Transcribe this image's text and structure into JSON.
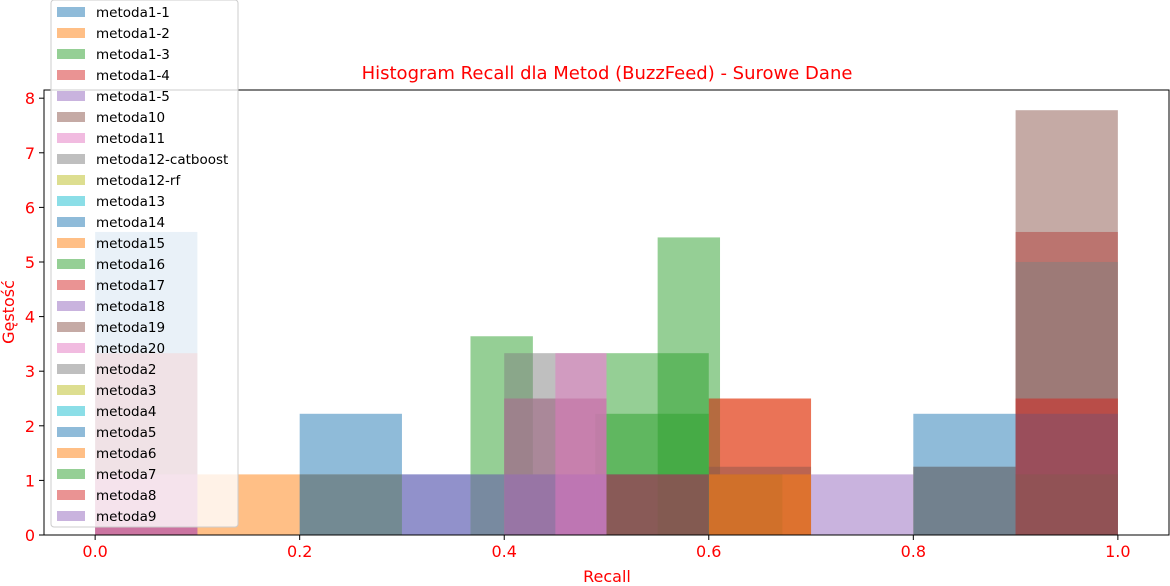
{
  "chart_data": {
    "type": "bar",
    "subtype": "overlaid-histogram",
    "title": "Histogram Recall dla Metod (BuzzFeed) - Surowe Dane",
    "xlabel": "Recall",
    "ylabel": "Gęstość",
    "label_color": "#ff0000",
    "xlim": [
      -0.05,
      1.05
    ],
    "ylim": [
      0,
      8.15
    ],
    "xticks": [
      0.0,
      0.2,
      0.4,
      0.6,
      0.8,
      1.0
    ],
    "xtick_labels": [
      "0.0",
      "0.2",
      "0.4",
      "0.6",
      "0.8",
      "1.0"
    ],
    "yticks": [
      0,
      1,
      2,
      3,
      4,
      5,
      6,
      7,
      8
    ],
    "ytick_labels": [
      "0",
      "1",
      "2",
      "3",
      "4",
      "5",
      "6",
      "7",
      "8"
    ],
    "bar_alpha": 0.5,
    "legend_position": "upper-left",
    "series": [
      {
        "name": "metoda1-1",
        "color": "#1f77b4",
        "bins": [
          [
            0.0,
            0.1,
            5.55
          ],
          [
            0.2,
            0.3,
            2.22
          ],
          [
            0.3,
            0.4,
            1.11
          ]
        ]
      },
      {
        "name": "metoda1-2",
        "color": "#ff7f0e",
        "bins": [
          [
            0.1,
            0.2,
            1.11
          ],
          [
            0.2,
            0.3,
            1.11
          ],
          [
            0.6,
            0.7,
            2.5
          ],
          [
            0.8,
            0.9,
            1.25
          ],
          [
            0.9,
            1.0,
            2.5
          ]
        ]
      },
      {
        "name": "metoda1-3",
        "color": "#2ca02c",
        "bins": [
          [
            0.367,
            0.428,
            3.64
          ],
          [
            0.428,
            0.489,
            1.11
          ],
          [
            0.489,
            0.55,
            2.22
          ],
          [
            0.55,
            0.611,
            5.45
          ],
          [
            0.611,
            0.672,
            1.11
          ]
        ]
      },
      {
        "name": "metoda1-4",
        "color": "#d62728",
        "bins": [
          [
            0.0,
            0.1,
            3.33
          ],
          [
            0.6,
            0.7,
            2.5
          ],
          [
            0.9,
            1.0,
            5.55
          ]
        ]
      },
      {
        "name": "metoda1-5",
        "color": "#9467bd",
        "bins": [
          [
            0.3,
            0.4,
            1.11
          ],
          [
            0.7,
            0.8,
            1.11
          ],
          [
            0.9,
            1.0,
            1.11
          ]
        ]
      },
      {
        "name": "metoda10",
        "color": "#8c564b",
        "bins": [
          [
            0.4,
            0.5,
            2.5
          ],
          [
            0.6,
            0.7,
            1.25
          ],
          [
            0.8,
            0.9,
            1.25
          ],
          [
            0.9,
            1.0,
            7.78
          ]
        ]
      },
      {
        "name": "metoda11",
        "color": "#e377c2",
        "bins": [
          [
            0.0,
            0.1,
            1.11
          ],
          [
            0.4,
            0.5,
            2.5
          ]
        ]
      },
      {
        "name": "metoda12-catboost",
        "color": "#7f7f7f",
        "bins": [
          [
            0.4,
            0.5,
            3.33
          ],
          [
            0.5,
            0.6,
            1.11
          ],
          [
            0.9,
            1.0,
            5.0
          ]
        ]
      },
      {
        "name": "metoda12-rf",
        "color": "#bcbd22",
        "bins": []
      },
      {
        "name": "metoda13",
        "color": "#17becf",
        "bins": []
      },
      {
        "name": "metoda14",
        "color": "#1f77b4",
        "bins": [
          [
            0.2,
            0.3,
            1.11
          ],
          [
            0.8,
            0.9,
            2.22
          ],
          [
            0.9,
            1.0,
            2.22
          ]
        ]
      },
      {
        "name": "metoda15",
        "color": "#ff7f0e",
        "bins": [
          [
            0.6,
            0.7,
            1.11
          ]
        ]
      },
      {
        "name": "metoda16",
        "color": "#2ca02c",
        "bins": [
          [
            0.5,
            0.6,
            3.33
          ],
          [
            0.55,
            0.6,
            2.22
          ]
        ]
      },
      {
        "name": "metoda17",
        "color": "#d62728",
        "bins": [
          [
            0.9,
            1.0,
            2.5
          ]
        ]
      },
      {
        "name": "metoda18",
        "color": "#9467bd",
        "bins": [
          [
            0.4,
            0.5,
            1.11
          ]
        ]
      },
      {
        "name": "metoda19",
        "color": "#8c564b",
        "bins": [
          [
            0.9,
            1.0,
            1.11
          ]
        ]
      },
      {
        "name": "metoda20",
        "color": "#e377c2",
        "bins": [
          [
            0.45,
            0.5,
            3.33
          ]
        ]
      },
      {
        "name": "metoda2",
        "color": "#7f7f7f",
        "bins": []
      },
      {
        "name": "metoda3",
        "color": "#bcbd22",
        "bins": []
      },
      {
        "name": "metoda4",
        "color": "#17becf",
        "bins": []
      },
      {
        "name": "metoda5",
        "color": "#1f77b4",
        "bins": [
          [
            0.5,
            0.6,
            1.11
          ]
        ]
      },
      {
        "name": "metoda6",
        "color": "#ff7f0e",
        "bins": []
      },
      {
        "name": "metoda7",
        "color": "#2ca02c",
        "bins": []
      },
      {
        "name": "metoda8",
        "color": "#d62728",
        "bins": [
          [
            0.5,
            0.6,
            1.11
          ]
        ]
      },
      {
        "name": "metoda9",
        "color": "#9467bd",
        "bins": []
      }
    ]
  }
}
